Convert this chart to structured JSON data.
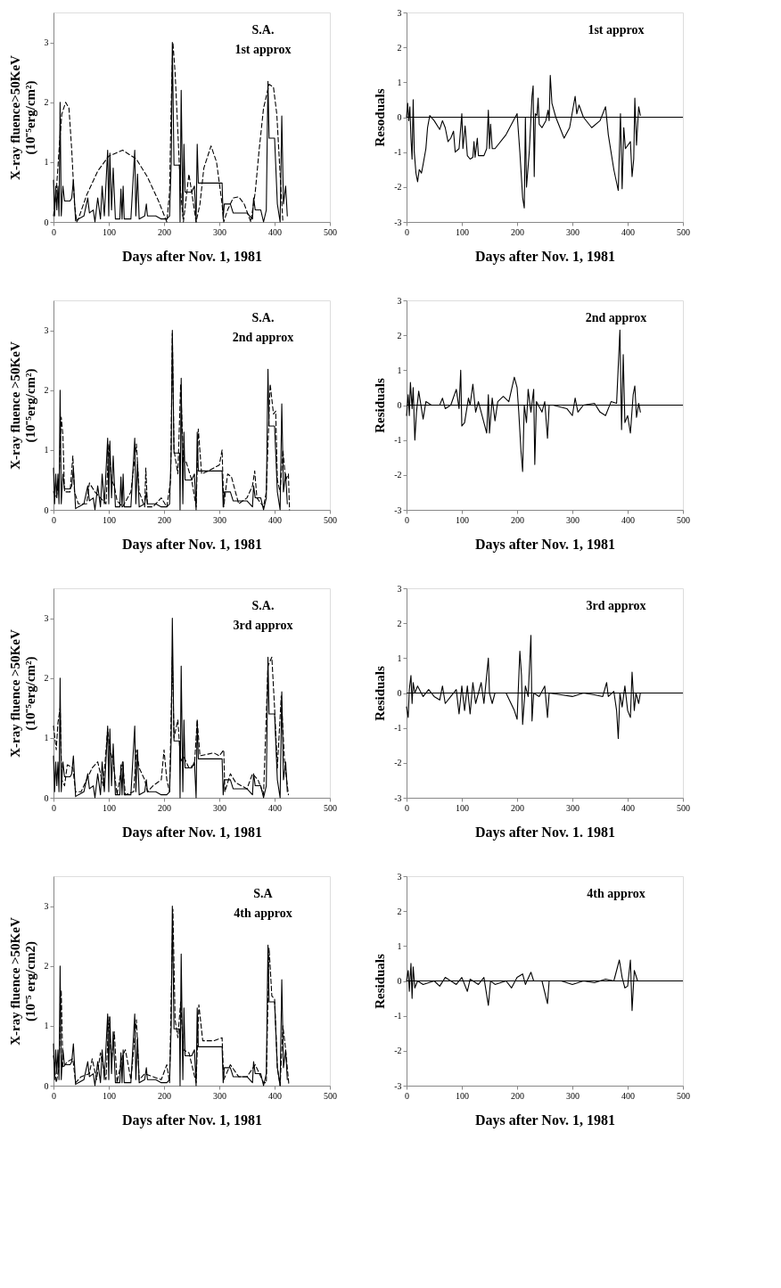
{
  "chart_data": [
    {
      "type": "line",
      "xlabel": "Days after Nov. 1, 1981",
      "ylabel": "X-ray fluence>50KeV\n(10⁻⁵erg/cm²)",
      "annotations": [
        "S.A.",
        "1st approx"
      ],
      "xlim": [
        0,
        500
      ],
      "xticks": [
        0,
        100,
        200,
        300,
        400,
        500
      ],
      "ylim": [
        0,
        3.5
      ],
      "yticks": [
        0,
        1,
        2,
        3
      ],
      "grid": false,
      "marker": "none",
      "series": [
        {
          "color": "#000000",
          "line_style": "solid",
          "x": [
            0,
            2,
            4,
            6,
            8,
            10,
            12,
            14,
            17,
            20,
            30,
            33,
            36,
            40,
            45,
            55,
            62,
            65,
            72,
            75,
            80,
            85,
            88,
            92,
            98,
            100,
            102,
            105,
            108,
            112,
            120,
            122,
            124,
            126,
            128,
            140,
            147,
            149,
            152,
            155,
            165,
            168,
            170,
            185,
            195,
            205,
            210,
            213,
            215,
            218,
            228,
            229,
            231,
            234,
            236,
            238,
            250,
            255,
            258,
            260,
            262,
            305,
            307,
            309,
            320,
            325,
            350,
            360,
            362,
            365,
            375,
            380,
            385,
            388,
            390,
            400,
            405,
            410,
            413,
            416,
            420,
            423
          ],
          "values": [
            0.7,
            0.1,
            0.6,
            0.2,
            0.6,
            0.1,
            2.0,
            0.1,
            0.6,
            0.35,
            0.35,
            0.4,
            0.7,
            0.02,
            0.05,
            0.1,
            0.4,
            0.15,
            0.2,
            0.0,
            0.4,
            0.05,
            0.6,
            0.1,
            1.2,
            0.1,
            1.15,
            0.2,
            0.9,
            0.05,
            0.05,
            0.55,
            0.05,
            0.6,
            0.05,
            0.05,
            1.2,
            0.1,
            0.8,
            0.05,
            0.1,
            0.3,
            0.1,
            0.1,
            0.05,
            0.05,
            0.1,
            1.0,
            3.0,
            0.95,
            0.95,
            0.0,
            2.2,
            0.1,
            1.3,
            0.5,
            0.5,
            0.6,
            0.0,
            1.3,
            0.65,
            0.65,
            0.05,
            0.3,
            0.3,
            0.15,
            0.15,
            0.05,
            0.4,
            0.2,
            0.2,
            0.0,
            0.2,
            2.35,
            1.4,
            1.4,
            0.3,
            0.0,
            1.77,
            0.3,
            0.6,
            0.1
          ]
        },
        {
          "color": "#000000",
          "line_style": "dashed",
          "x": [
            0,
            5,
            10,
            15,
            22,
            28,
            33,
            38,
            42,
            45,
            60,
            80,
            100,
            125,
            150,
            170,
            190,
            205,
            210,
            213,
            216,
            220,
            225,
            230,
            235,
            240,
            245,
            250,
            258,
            265,
            272,
            285,
            295,
            305,
            308,
            315,
            325,
            335,
            345,
            357,
            365,
            372,
            380,
            390,
            398,
            404,
            410,
            415
          ],
          "values": [
            0.1,
            0.5,
            1.2,
            1.8,
            2.0,
            1.9,
            1.2,
            0.3,
            0.0,
            0.05,
            0.45,
            0.85,
            1.1,
            1.2,
            1.05,
            0.75,
            0.35,
            0.0,
            0.5,
            2.0,
            3.0,
            2.5,
            1.5,
            0.5,
            0.0,
            0.4,
            0.8,
            0.5,
            0.0,
            0.3,
            0.9,
            1.27,
            1.0,
            0.3,
            0.0,
            0.2,
            0.4,
            0.42,
            0.3,
            0.0,
            0.5,
            1.2,
            1.9,
            2.3,
            2.25,
            1.8,
            0.8,
            0.0
          ]
        }
      ]
    },
    {
      "type": "line",
      "xlabel": "Days after Nov. 1, 1981",
      "ylabel": "Resoduals",
      "annotations": [
        "1st approx"
      ],
      "xlim": [
        0,
        500
      ],
      "xticks": [
        0,
        100,
        200,
        300,
        400,
        500
      ],
      "ylim": [
        -3,
        3
      ],
      "yticks": [
        -3,
        -2,
        -1,
        0,
        1,
        2,
        3
      ],
      "grid": false,
      "marker": "none",
      "ref_lines": [
        {
          "axis": "y",
          "value": 0,
          "color": "#000000"
        }
      ],
      "series": [
        {
          "color": "#000000",
          "line_style": "solid",
          "x": [
            0,
            2,
            4,
            6,
            8,
            10,
            12,
            14,
            17,
            20,
            23,
            27,
            30,
            35,
            38,
            42,
            50,
            60,
            65,
            70,
            75,
            80,
            85,
            88,
            95,
            100,
            102,
            106,
            110,
            115,
            120,
            122,
            124,
            128,
            130,
            140,
            145,
            148,
            150,
            152,
            155,
            160,
            180,
            200,
            205,
            210,
            213,
            215,
            217,
            222,
            227,
            229,
            231,
            233,
            236,
            238,
            240,
            245,
            252,
            256,
            258,
            260,
            263,
            270,
            285,
            295,
            305,
            308,
            312,
            320,
            335,
            350,
            360,
            365,
            375,
            383,
            387,
            390,
            393,
            396,
            405,
            408,
            411,
            413,
            416,
            420,
            423
          ],
          "values": [
            0.0,
            0.4,
            -0.1,
            0.3,
            -0.6,
            -1.2,
            0.5,
            -1.0,
            -1.6,
            -1.85,
            -1.5,
            -1.6,
            -1.35,
            -0.9,
            -0.3,
            0.05,
            -0.1,
            -0.35,
            -0.1,
            -0.3,
            -0.7,
            -0.6,
            -0.4,
            -1.0,
            -0.9,
            0.1,
            -0.9,
            -0.25,
            -1.1,
            -1.2,
            -1.15,
            -0.7,
            -1.15,
            -0.6,
            -1.1,
            -1.1,
            -0.9,
            0.2,
            -0.9,
            -0.2,
            -0.9,
            -0.9,
            -0.5,
            0.1,
            -1.0,
            -2.3,
            -2.6,
            0.0,
            -2.0,
            -1.0,
            0.6,
            0.9,
            -1.7,
            0.1,
            0.05,
            0.55,
            -0.2,
            -0.3,
            -0.1,
            0.2,
            -0.1,
            1.2,
            0.4,
            0.0,
            -0.6,
            -0.3,
            0.6,
            0.1,
            0.35,
            0.0,
            -0.3,
            -0.1,
            0.3,
            -0.5,
            -1.5,
            -2.1,
            0.1,
            -2.05,
            -0.3,
            -0.9,
            -0.7,
            -1.7,
            -1.2,
            0.55,
            -0.8,
            0.3,
            0.05
          ]
        }
      ]
    },
    {
      "type": "line",
      "xlabel": "Days after Nov. 1, 1981",
      "ylabel": "X-ray fluence >50KeV\n(10⁻⁵erg/cm²)",
      "annotations": [
        "S.A.",
        "2nd approx"
      ],
      "xlim": [
        0,
        500
      ],
      "xticks": [
        0,
        100,
        200,
        300,
        400,
        500
      ],
      "ylim": [
        0,
        3.5
      ],
      "yticks": [
        0,
        1,
        2,
        3
      ],
      "grid": false,
      "marker": "none",
      "series": [
        {
          "color": "#000000",
          "line_style": "solid",
          "x": [
            0,
            2,
            4,
            6,
            8,
            10,
            12,
            14,
            17,
            20,
            30,
            33,
            36,
            40,
            45,
            55,
            62,
            65,
            72,
            75,
            80,
            85,
            88,
            92,
            98,
            100,
            102,
            105,
            108,
            112,
            120,
            122,
            124,
            126,
            128,
            140,
            147,
            149,
            152,
            155,
            165,
            168,
            170,
            185,
            195,
            205,
            210,
            213,
            215,
            218,
            228,
            229,
            231,
            234,
            236,
            238,
            250,
            255,
            258,
            260,
            262,
            305,
            307,
            309,
            320,
            325,
            350,
            360,
            362,
            365,
            375,
            380,
            385,
            388,
            390,
            400,
            405,
            410,
            413,
            416,
            420,
            423
          ],
          "values": [
            0.7,
            0.1,
            0.6,
            0.2,
            0.6,
            0.1,
            2.0,
            0.1,
            0.6,
            0.35,
            0.35,
            0.4,
            0.7,
            0.02,
            0.05,
            0.1,
            0.4,
            0.15,
            0.2,
            0.0,
            0.4,
            0.05,
            0.6,
            0.1,
            1.2,
            0.1,
            1.15,
            0.2,
            0.9,
            0.05,
            0.05,
            0.55,
            0.05,
            0.6,
            0.05,
            0.05,
            1.2,
            0.1,
            0.8,
            0.05,
            0.1,
            0.3,
            0.1,
            0.1,
            0.05,
            0.05,
            0.1,
            1.0,
            3.0,
            0.95,
            0.95,
            0.0,
            2.2,
            0.1,
            1.3,
            0.5,
            0.5,
            0.6,
            0.0,
            1.3,
            0.65,
            0.65,
            0.05,
            0.3,
            0.3,
            0.15,
            0.15,
            0.05,
            0.4,
            0.2,
            0.2,
            0.0,
            0.2,
            2.35,
            1.4,
            1.4,
            0.3,
            0.0,
            1.77,
            0.3,
            0.6,
            0.1
          ]
        },
        {
          "color": "#000000",
          "line_style": "dashed",
          "x": [
            0,
            5,
            10,
            14,
            17,
            20,
            30,
            35,
            38,
            45,
            60,
            65,
            75,
            85,
            95,
            100,
            105,
            110,
            115,
            125,
            140,
            145,
            150,
            155,
            165,
            167,
            170,
            180,
            195,
            205,
            212,
            215,
            218,
            225,
            230,
            235,
            240,
            250,
            258,
            262,
            268,
            280,
            300,
            305,
            308,
            315,
            322,
            335,
            350,
            360,
            364,
            368,
            380,
            385,
            392,
            398,
            402,
            405,
            410,
            415,
            420,
            425,
            427
          ],
          "values": [
            0.3,
            0.2,
            0.5,
            1.55,
            1.25,
            0.3,
            0.3,
            0.9,
            0.3,
            0.1,
            0.1,
            0.45,
            0.3,
            0.2,
            0.1,
            1.1,
            0.5,
            0.4,
            0.15,
            0.05,
            0.3,
            0.7,
            1.1,
            0.3,
            0.05,
            0.7,
            0.05,
            0.05,
            0.2,
            0.05,
            0.5,
            2.95,
            1.0,
            0.6,
            2.1,
            0.8,
            0.8,
            0.5,
            0.05,
            1.35,
            0.6,
            0.65,
            0.75,
            1.0,
            0.05,
            0.6,
            0.55,
            0.1,
            0.2,
            0.4,
            0.65,
            0.2,
            0.05,
            0.3,
            2.1,
            1.6,
            1.65,
            0.5,
            0.3,
            1.0,
            0.5,
            0.6,
            0.0
          ]
        }
      ]
    },
    {
      "type": "line",
      "xlabel": "Days after Nov. 1, 1981",
      "ylabel": "Residuals",
      "annotations": [
        "2nd approx"
      ],
      "xlim": [
        0,
        500
      ],
      "xticks": [
        0,
        100,
        200,
        300,
        400,
        500
      ],
      "ylim": [
        -3,
        3
      ],
      "yticks": [
        -3,
        -2,
        -1,
        0,
        1,
        2,
        3
      ],
      "grid": false,
      "marker": "none",
      "ref_lines": [
        {
          "axis": "y",
          "value": 0,
          "color": "#000000"
        }
      ],
      "series": [
        {
          "color": "#000000",
          "line_style": "solid",
          "x": [
            0,
            3,
            5,
            7,
            10,
            12,
            15,
            18,
            22,
            30,
            35,
            45,
            60,
            65,
            70,
            80,
            90,
            95,
            98,
            100,
            105,
            112,
            115,
            120,
            125,
            130,
            145,
            148,
            150,
            155,
            160,
            165,
            175,
            185,
            195,
            200,
            203,
            207,
            210,
            213,
            217,
            220,
            225,
            230,
            232,
            235,
            245,
            250,
            255,
            258,
            265,
            290,
            300,
            305,
            310,
            320,
            340,
            350,
            360,
            370,
            380,
            386,
            389,
            392,
            395,
            400,
            405,
            410,
            413,
            416,
            420,
            423
          ],
          "values": [
            -0.3,
            0.3,
            -0.3,
            0.65,
            -0.1,
            0.5,
            -1.0,
            -0.2,
            0.4,
            -0.4,
            0.1,
            0.0,
            0.0,
            0.2,
            -0.1,
            0.0,
            0.45,
            -0.1,
            1.0,
            -0.6,
            -0.5,
            0.2,
            0.0,
            0.6,
            -0.2,
            0.1,
            -0.8,
            0.3,
            -0.8,
            0.2,
            -0.45,
            0.1,
            0.25,
            0.1,
            0.8,
            0.5,
            -0.2,
            -1.3,
            -1.9,
            0.0,
            -0.5,
            0.45,
            -0.2,
            0.45,
            -1.7,
            0.1,
            -0.2,
            0.1,
            -0.95,
            0.0,
            0.0,
            -0.1,
            -0.3,
            0.2,
            -0.2,
            0.0,
            0.05,
            -0.2,
            -0.3,
            0.1,
            0.05,
            2.15,
            -0.7,
            1.45,
            -0.5,
            -0.3,
            -0.8,
            0.3,
            0.55,
            -0.35,
            0.05,
            -0.2
          ]
        }
      ]
    },
    {
      "type": "line",
      "xlabel": "Days after Nov. 1, 1981",
      "ylabel": "X-ray fluence >50KeV\n(10⁻⁵erg/cm²)",
      "annotations": [
        "S.A.",
        "3rd approx"
      ],
      "xlim": [
        0,
        500
      ],
      "xticks": [
        0,
        100,
        200,
        300,
        400,
        500
      ],
      "ylim": [
        0,
        3.5
      ],
      "yticks": [
        0,
        1,
        2,
        3
      ],
      "grid": false,
      "marker": "none",
      "series": [
        {
          "color": "#000000",
          "line_style": "solid",
          "x": [
            0,
            2,
            4,
            6,
            8,
            10,
            12,
            14,
            17,
            20,
            30,
            33,
            36,
            40,
            45,
            55,
            62,
            65,
            72,
            75,
            80,
            85,
            88,
            92,
            98,
            100,
            102,
            105,
            108,
            112,
            120,
            122,
            124,
            126,
            128,
            140,
            147,
            149,
            152,
            155,
            165,
            168,
            170,
            185,
            195,
            205,
            210,
            213,
            215,
            218,
            228,
            229,
            231,
            234,
            236,
            238,
            250,
            255,
            258,
            260,
            262,
            305,
            307,
            309,
            320,
            325,
            350,
            360,
            362,
            365,
            375,
            380,
            385,
            388,
            390,
            400,
            405,
            410,
            413,
            416,
            420,
            423
          ],
          "values": [
            0.7,
            0.1,
            0.6,
            0.2,
            0.6,
            0.1,
            2.0,
            0.1,
            0.6,
            0.35,
            0.35,
            0.4,
            0.7,
            0.02,
            0.05,
            0.1,
            0.4,
            0.15,
            0.2,
            0.0,
            0.4,
            0.05,
            0.6,
            0.1,
            1.2,
            0.1,
            1.15,
            0.2,
            0.9,
            0.05,
            0.05,
            0.55,
            0.05,
            0.6,
            0.05,
            0.05,
            1.2,
            0.1,
            0.8,
            0.05,
            0.1,
            0.3,
            0.1,
            0.1,
            0.05,
            0.05,
            0.1,
            1.0,
            3.0,
            0.95,
            0.95,
            0.0,
            2.2,
            0.1,
            1.3,
            0.5,
            0.5,
            0.6,
            0.0,
            1.3,
            0.65,
            0.65,
            0.05,
            0.3,
            0.3,
            0.15,
            0.15,
            0.05,
            0.4,
            0.2,
            0.2,
            0.0,
            0.2,
            2.35,
            1.4,
            1.4,
            0.3,
            0.0,
            1.77,
            0.3,
            0.6,
            0.1
          ]
        },
        {
          "color": "#000000",
          "line_style": "dashed",
          "x": [
            0,
            5,
            8,
            12,
            15,
            20,
            25,
            35,
            40,
            50,
            60,
            70,
            80,
            90,
            98,
            102,
            108,
            115,
            125,
            130,
            145,
            150,
            155,
            165,
            170,
            180,
            195,
            200,
            205,
            210,
            215,
            218,
            225,
            230,
            235,
            245,
            255,
            260,
            265,
            290,
            300,
            308,
            310,
            320,
            330,
            350,
            360,
            370,
            380,
            388,
            395,
            400,
            405,
            412,
            418,
            425
          ],
          "values": [
            1.2,
            0.8,
            1.25,
            1.5,
            0.3,
            0.2,
            0.55,
            0.5,
            0.1,
            0.1,
            0.3,
            0.5,
            0.6,
            0.2,
            1.15,
            0.8,
            0.6,
            0.05,
            0.6,
            0.05,
            0.1,
            0.8,
            0.5,
            0.3,
            0.1,
            0.2,
            0.3,
            0.8,
            0.3,
            0.1,
            2.35,
            1.0,
            1.3,
            0.6,
            0.7,
            0.5,
            0.55,
            1.3,
            0.7,
            0.75,
            0.7,
            0.8,
            0.1,
            0.4,
            0.25,
            0.15,
            0.4,
            0.3,
            0.05,
            2.2,
            2.35,
            1.5,
            0.5,
            1.7,
            0.6,
            0.05
          ]
        }
      ]
    },
    {
      "type": "line",
      "xlabel": "Days after Nov. 1. 1981",
      "ylabel": "Residuals",
      "annotations": [
        "3rd approx"
      ],
      "xlim": [
        0,
        500
      ],
      "xticks": [
        0,
        100,
        200,
        300,
        400,
        500
      ],
      "ylim": [
        -3,
        3
      ],
      "yticks": [
        -3,
        -2,
        -1,
        0,
        1,
        2,
        3
      ],
      "grid": false,
      "marker": "none",
      "ref_lines": [
        {
          "axis": "y",
          "value": 0,
          "color": "#000000"
        }
      ],
      "series": [
        {
          "color": "#000000",
          "line_style": "solid",
          "x": [
            0,
            3,
            5,
            8,
            10,
            12,
            15,
            20,
            30,
            40,
            50,
            60,
            65,
            70,
            80,
            90,
            95,
            100,
            105,
            110,
            115,
            120,
            125,
            135,
            140,
            148,
            150,
            155,
            160,
            180,
            195,
            200,
            205,
            208,
            210,
            215,
            220,
            225,
            227,
            230,
            240,
            250,
            255,
            258,
            280,
            300,
            320,
            340,
            355,
            362,
            365,
            375,
            380,
            383,
            386,
            390,
            395,
            400,
            405,
            408,
            412,
            415,
            420,
            423
          ],
          "values": [
            -0.4,
            -0.7,
            0.1,
            0.5,
            -0.3,
            0.3,
            0.0,
            0.2,
            -0.1,
            0.1,
            -0.1,
            -0.2,
            0.2,
            -0.3,
            -0.1,
            0.1,
            -0.6,
            0.2,
            -0.5,
            0.2,
            -0.6,
            0.3,
            -0.3,
            0.3,
            -0.3,
            1.0,
            0.0,
            -0.3,
            0.0,
            0.0,
            -0.5,
            -0.75,
            1.2,
            0.5,
            -0.9,
            0.2,
            -0.1,
            1.65,
            -0.8,
            0.0,
            -0.1,
            0.2,
            -0.7,
            0.0,
            -0.05,
            -0.1,
            0.0,
            -0.05,
            -0.1,
            0.3,
            -0.1,
            0.05,
            -0.5,
            -1.3,
            0.0,
            -0.4,
            0.2,
            -0.5,
            -0.7,
            0.6,
            -0.5,
            0.0,
            -0.3,
            0.0
          ]
        }
      ]
    },
    {
      "type": "line",
      "xlabel": "Days after Nov. 1, 1981",
      "ylabel": "X-ray fluence >50KeV\n(10⁻⁵ erg/cm2)",
      "annotations": [
        "S.A",
        "4th approx"
      ],
      "xlim": [
        0,
        500
      ],
      "xticks": [
        0,
        100,
        200,
        300,
        400,
        500
      ],
      "ylim": [
        0,
        3.5
      ],
      "yticks": [
        0,
        1,
        2,
        3
      ],
      "grid": false,
      "marker": "none",
      "series": [
        {
          "color": "#000000",
          "line_style": "solid",
          "x": [
            0,
            2,
            4,
            6,
            8,
            10,
            12,
            14,
            17,
            20,
            30,
            33,
            36,
            40,
            45,
            55,
            62,
            65,
            72,
            75,
            80,
            85,
            88,
            92,
            98,
            100,
            102,
            105,
            108,
            112,
            120,
            122,
            124,
            126,
            128,
            140,
            147,
            149,
            152,
            155,
            165,
            168,
            170,
            185,
            195,
            205,
            210,
            213,
            215,
            218,
            228,
            229,
            231,
            234,
            236,
            238,
            250,
            255,
            258,
            260,
            262,
            305,
            307,
            309,
            320,
            325,
            350,
            360,
            362,
            365,
            375,
            380,
            385,
            388,
            390,
            400,
            405,
            410,
            413,
            416,
            420,
            423
          ],
          "values": [
            0.7,
            0.1,
            0.6,
            0.2,
            0.6,
            0.1,
            2.0,
            0.1,
            0.6,
            0.35,
            0.35,
            0.4,
            0.7,
            0.02,
            0.05,
            0.1,
            0.4,
            0.15,
            0.2,
            0.0,
            0.4,
            0.05,
            0.6,
            0.1,
            1.2,
            0.1,
            1.15,
            0.2,
            0.9,
            0.05,
            0.05,
            0.55,
            0.05,
            0.6,
            0.05,
            0.05,
            1.2,
            0.1,
            0.8,
            0.05,
            0.1,
            0.3,
            0.1,
            0.1,
            0.05,
            0.05,
            0.1,
            1.0,
            3.0,
            0.95,
            0.95,
            0.0,
            2.2,
            0.1,
            1.3,
            0.5,
            0.5,
            0.6,
            0.0,
            1.3,
            0.65,
            0.65,
            0.05,
            0.3,
            0.3,
            0.15,
            0.15,
            0.05,
            0.4,
            0.2,
            0.2,
            0.0,
            0.2,
            2.35,
            1.4,
            1.4,
            0.3,
            0.0,
            1.77,
            0.3,
            0.6,
            0.1
          ]
        },
        {
          "color": "#000000",
          "line_style": "dashed",
          "x": [
            0,
            5,
            10,
            14,
            17,
            25,
            35,
            40,
            50,
            65,
            70,
            78,
            85,
            95,
            100,
            105,
            110,
            115,
            125,
            130,
            140,
            150,
            155,
            165,
            180,
            195,
            205,
            210,
            216,
            220,
            225,
            230,
            235,
            245,
            258,
            263,
            270,
            290,
            305,
            308,
            320,
            335,
            350,
            365,
            380,
            385,
            390,
            395,
            400,
            405,
            410,
            415,
            420,
            426
          ],
          "values": [
            0.5,
            0.05,
            0.3,
            1.6,
            0.3,
            0.4,
            0.45,
            0.05,
            0.15,
            0.2,
            0.45,
            0.1,
            0.55,
            0.1,
            1.15,
            0.4,
            0.9,
            0.05,
            0.5,
            0.6,
            0.1,
            1.1,
            0.1,
            0.2,
            0.15,
            0.1,
            0.35,
            0.05,
            2.95,
            1.1,
            0.8,
            1.4,
            0.6,
            0.55,
            0.05,
            1.35,
            0.75,
            0.75,
            0.8,
            0.1,
            0.35,
            0.15,
            0.15,
            0.35,
            0.05,
            0.05,
            2.3,
            1.5,
            1.45,
            0.3,
            0.0,
            1.0,
            0.6,
            0.0
          ]
        }
      ]
    },
    {
      "type": "line",
      "xlabel": "Days after Nov. 1, 1981",
      "ylabel": "Residuals",
      "annotations": [
        "4th approx"
      ],
      "xlim": [
        0,
        500
      ],
      "xticks": [
        0,
        100,
        200,
        300,
        400,
        500
      ],
      "ylim": [
        -3,
        3
      ],
      "yticks": [
        -3,
        -2,
        -1,
        0,
        1,
        2,
        3
      ],
      "grid": false,
      "marker": "none",
      "ref_lines": [
        {
          "axis": "y",
          "value": 0,
          "color": "#000000"
        }
      ],
      "series": [
        {
          "color": "#000000",
          "line_style": "solid",
          "x": [
            0,
            3,
            5,
            8,
            10,
            12,
            15,
            20,
            30,
            50,
            60,
            70,
            80,
            90,
            100,
            110,
            115,
            130,
            140,
            148,
            152,
            160,
            180,
            190,
            200,
            210,
            215,
            225,
            230,
            245,
            255,
            258,
            280,
            300,
            320,
            340,
            360,
            375,
            385,
            390,
            395,
            400,
            405,
            408,
            412,
            418,
            423
          ],
          "values": [
            0.0,
            0.3,
            -0.3,
            0.5,
            -0.5,
            0.4,
            -0.2,
            0.0,
            -0.1,
            0.0,
            -0.15,
            0.1,
            0.0,
            -0.1,
            0.1,
            -0.3,
            0.05,
            -0.1,
            0.1,
            -0.7,
            0.0,
            -0.1,
            0.0,
            -0.2,
            0.1,
            0.2,
            -0.1,
            0.25,
            0.0,
            0.0,
            -0.65,
            0.0,
            0.0,
            -0.1,
            0.0,
            -0.05,
            0.05,
            0.0,
            0.6,
            0.1,
            -0.2,
            -0.15,
            0.6,
            -0.85,
            0.3,
            0.0,
            0.0
          ]
        }
      ]
    }
  ]
}
